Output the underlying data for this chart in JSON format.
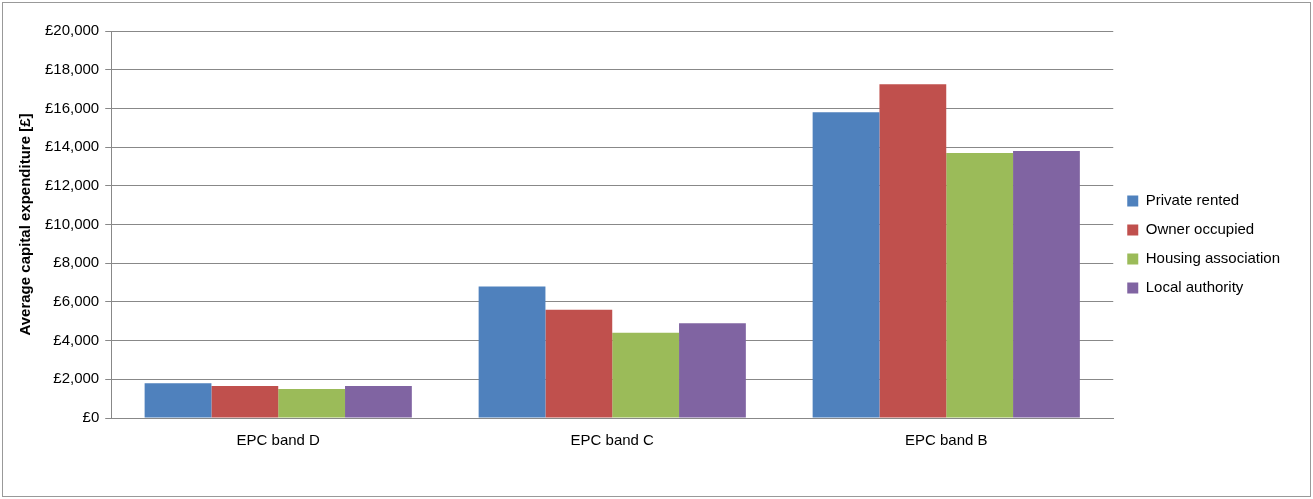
{
  "chart_data": {
    "type": "bar",
    "ylabel": "Average capital expenditure [£]",
    "categories": [
      "EPC band D",
      "EPC band C",
      "EPC band B"
    ],
    "series": [
      {
        "name": "Private rented",
        "color": "#4f81bd",
        "values": [
          1800,
          6800,
          15800
        ]
      },
      {
        "name": "Owner occupied",
        "color": "#c0504d",
        "values": [
          1650,
          5600,
          17250
        ]
      },
      {
        "name": "Housing association",
        "color": "#9bbb59",
        "values": [
          1500,
          4400,
          13700
        ]
      },
      {
        "name": "Local authority",
        "color": "#8064a2",
        "values": [
          1650,
          4900,
          13800
        ]
      }
    ],
    "ylim": [
      0,
      20000
    ],
    "yticks": [
      {
        "value": 0,
        "label": "£0"
      },
      {
        "value": 2000,
        "label": "£2,000"
      },
      {
        "value": 4000,
        "label": "£4,000"
      },
      {
        "value": 6000,
        "label": "£6,000"
      },
      {
        "value": 8000,
        "label": "£8,000"
      },
      {
        "value": 10000,
        "label": "£10,000"
      },
      {
        "value": 12000,
        "label": "£12,000"
      },
      {
        "value": 14000,
        "label": "£14,000"
      },
      {
        "value": 16000,
        "label": "£16,000"
      },
      {
        "value": 18000,
        "label": "£18,000"
      },
      {
        "value": 20000,
        "label": "£20,000"
      }
    ],
    "grid": "y",
    "legend": "right"
  }
}
